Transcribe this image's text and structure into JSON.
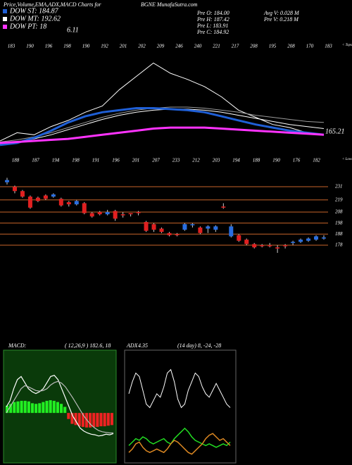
{
  "header": {
    "title": "Price,Volume,EMA,ADX,MACD Charts for",
    "symbol": "BGNE MunafaSutra.com",
    "stats": [
      "Pre O: 184.00",
      "Pre H: 187.42",
      "Pre L: 183.91",
      "Pre C: 184.92",
      "Avg V: 0.028 M",
      "Pre V: 0.218 M"
    ]
  },
  "legend_note": "6.11",
  "chart_data": [
    {
      "type": "line",
      "ylim": [
        140,
        250
      ],
      "last_label": "165.21",
      "top_labels": [
        "183",
        "190",
        "196",
        "198",
        "190",
        "192",
        "201",
        "202",
        "209",
        "246",
        "240",
        "221",
        "217",
        "208",
        "195",
        "208",
        "170",
        "183"
      ],
      "bottom_labels": [
        "188",
        "187",
        "194",
        "198",
        "191",
        "196",
        "201",
        "207",
        "233",
        "212",
        "203",
        "194",
        "188",
        "190",
        "176",
        "182"
      ],
      "top_tag": "< Tops",
      "bottom_tag": "< Lows",
      "series": [
        {
          "color": "#ffffff",
          "width": 1,
          "values": [
            162,
            170,
            168,
            176,
            182,
            190,
            196,
            212,
            225,
            238,
            228,
            222,
            215,
            205,
            192,
            185,
            178,
            175,
            170,
            168
          ]
        },
        {
          "color": "#9a9a9a",
          "width": 1,
          "values": [
            161,
            163,
            166,
            170,
            175,
            180,
            185,
            189,
            192,
            194,
            195,
            195,
            194,
            192,
            190,
            187,
            185,
            183,
            181,
            180
          ]
        },
        {
          "name": "DOW MT: 192.62",
          "color": "#ffffff",
          "width": 1,
          "values": [
            159,
            161,
            164,
            168,
            173,
            178,
            183,
            187,
            190,
            192,
            193,
            193,
            192,
            190,
            187,
            184,
            181,
            178,
            176,
            174
          ]
        },
        {
          "name": "DOW ST: 184.87",
          "color": "#1f5fd6",
          "width": 3,
          "values": [
            158,
            160,
            165,
            172,
            180,
            186,
            190,
            192,
            194,
            194,
            193,
            192,
            190,
            186,
            182,
            178,
            175,
            172,
            170,
            168
          ]
        },
        {
          "name": "DOW PT: 18",
          "color": "#ff33ff",
          "width": 3,
          "values": [
            160,
            161,
            162,
            163,
            164,
            166,
            168,
            170,
            172,
            174,
            175,
            175,
            175,
            174,
            173,
            172,
            171,
            170,
            169,
            168
          ]
        }
      ]
    },
    {
      "type": "candlestick",
      "ylim": [
        173,
        241
      ],
      "yticks": [
        231,
        219,
        208,
        198,
        188,
        178
      ],
      "grid_color": "#c8642a",
      "up_color": "#2a6ee0",
      "down_color": "#e02020",
      "candles": [
        [
          235,
          239,
          233,
          237
        ],
        [
          231,
          232,
          225,
          227
        ],
        [
          227,
          228,
          221,
          222
        ],
        [
          222,
          223,
          211,
          212
        ],
        [
          221,
          222,
          217,
          218
        ],
        [
          223,
          224,
          219,
          220
        ],
        [
          222,
          225,
          221,
          224
        ],
        [
          220,
          221,
          213,
          214
        ],
        [
          217,
          218,
          213,
          215
        ],
        [
          215,
          219,
          214,
          218
        ],
        [
          216,
          217,
          206,
          207
        ],
        [
          207,
          208,
          203,
          204
        ],
        [
          208,
          209,
          205,
          206
        ],
        [
          206,
          210,
          205,
          208
        ],
        [
          209,
          210,
          200,
          202
        ],
        [
          206,
          208,
          203,
          205
        ],
        [
          207,
          207,
          204,
          206
        ],
        [
          208,
          209,
          205,
          207
        ],
        [
          199,
          200,
          190,
          191
        ],
        [
          197,
          198,
          190,
          192
        ],
        [
          193,
          194,
          189,
          190
        ],
        [
          189,
          190,
          186,
          187
        ],
        [
          188,
          189,
          186,
          187
        ],
        [
          192,
          198,
          191,
          197
        ],
        [
          196,
          198,
          194,
          197
        ],
        [
          194,
          195,
          188,
          189
        ],
        [
          193,
          196,
          189,
          195
        ],
        [
          192,
          196,
          190,
          195
        ],
        [
          213,
          216,
          211,
          212
        ],
        [
          186,
          197,
          185,
          195
        ],
        [
          187,
          188,
          181,
          182
        ],
        [
          183,
          184,
          178,
          179
        ],
        [
          179,
          180,
          175,
          176
        ],
        [
          178,
          179,
          176,
          177
        ],
        [
          178,
          180,
          176,
          177
        ],
        [
          176,
          178,
          171,
          175
        ],
        [
          178,
          179,
          175,
          177
        ],
        [
          180,
          182,
          178,
          181
        ],
        [
          181,
          184,
          180,
          183
        ],
        [
          182,
          185,
          181,
          184
        ],
        [
          183,
          187,
          182,
          186
        ],
        [
          184,
          187,
          183,
          185
        ]
      ]
    },
    {
      "type": "macd",
      "title": "MACD:",
      "params": "( 12,26,9 ) 182.6, 18",
      "ylim": [
        -8,
        10
      ],
      "bg": "#0a3a0a",
      "up_color": "#22ee22",
      "down_color": "#ee2222",
      "histogram": [
        1.2,
        1.5,
        1.8,
        1.9,
        2.0,
        2.0,
        1.9,
        1.6,
        1.5,
        1.6,
        1.8,
        2.0,
        2.1,
        2.0,
        1.8,
        1.5,
        1.0,
        -1.0,
        -1.8,
        -2.0,
        -2.2,
        -2.3,
        -2.4,
        -2.4,
        -2.3,
        -2.3,
        -2.2,
        -2.2,
        -2.1,
        -2.0
      ],
      "series": [
        {
          "color": "#ffffff",
          "values": [
            1,
            2,
            4,
            5.5,
            6,
            5,
            4,
            3.5,
            3.2,
            3.5,
            4,
            5,
            6,
            6.2,
            5.5,
            4,
            2.5,
            1,
            -0.5,
            -1.5,
            -2.5,
            -3,
            -3.3,
            -3.5,
            -3.6,
            -3.8,
            -3.7,
            -3.5,
            -3.6,
            -3.4
          ]
        },
        {
          "color": "#bbbbbb",
          "values": [
            0,
            1,
            2,
            3,
            4,
            4.5,
            4.3,
            4,
            3.7,
            3.6,
            3.7,
            4,
            4.6,
            5,
            5.2,
            4.9,
            4.3,
            3.4,
            2.5,
            1.5,
            0.5,
            -0.5,
            -1.3,
            -2,
            -2.5,
            -2.9,
            -3.1,
            -3.2,
            -3.3,
            -3.3
          ]
        }
      ]
    },
    {
      "type": "adx",
      "title": "ADX",
      "value_text": "4.35",
      "params": "(14 day) 8, -24, -28",
      "ylim": [
        0,
        60
      ],
      "series": [
        {
          "color": "#ffffff",
          "values": [
            38,
            45,
            50,
            48,
            40,
            32,
            30,
            34,
            38,
            36,
            42,
            50,
            52,
            45,
            35,
            30,
            32,
            40,
            45,
            50,
            48,
            42,
            38,
            36,
            40,
            44,
            40,
            36,
            32,
            30
          ]
        },
        {
          "color": "#22dd22",
          "values": [
            8,
            10,
            12,
            11,
            13,
            12,
            10,
            9,
            10,
            11,
            12,
            10,
            9,
            12,
            14,
            16,
            18,
            16,
            13,
            11,
            10,
            9,
            8,
            9,
            8,
            7,
            8,
            9,
            8,
            10
          ]
        },
        {
          "color": "#dd8822",
          "values": [
            4,
            6,
            9,
            10,
            7,
            5,
            4,
            5,
            6,
            5,
            4,
            6,
            9,
            11,
            10,
            8,
            6,
            4,
            3,
            5,
            7,
            9,
            12,
            14,
            15,
            13,
            11,
            12,
            10,
            8
          ]
        }
      ]
    }
  ]
}
